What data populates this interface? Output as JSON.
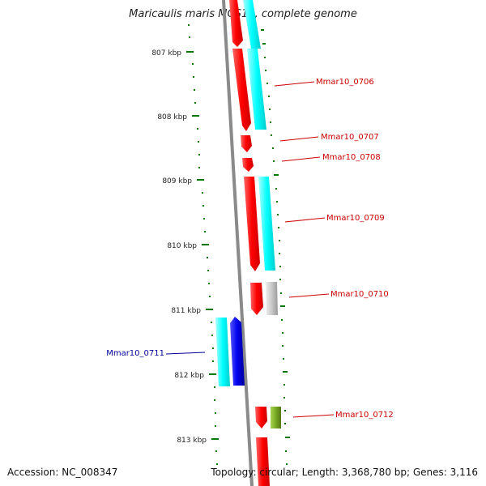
{
  "title": "Maricaulis maris MCS10, complete genome",
  "accession": "Accession: NC_008347",
  "topology": "Topology: circular; Length: 3,368,780 bp; Genes: 3,116",
  "ticks": [
    "807 kbp",
    "808 kbp",
    "809 kbp",
    "810 kbp",
    "811 kbp",
    "812 kbp",
    "813 kbp"
  ],
  "colors": {
    "cds": "#ff0000",
    "gene": "#00ffff",
    "gene_grey": "#c8c8c8",
    "cds_blue": "#0000ee",
    "cds_olive": "#77aa22",
    "ruler": "#007700",
    "label_forward": "#cc0000",
    "label_reverse": "#000099",
    "backbone": "#888888"
  },
  "genes": [
    {
      "id": "Mmar10_0706",
      "label": "Mmar10_0706",
      "strand": "+",
      "gene_color": "cyan"
    },
    {
      "id": "Mmar10_0707",
      "label": "Mmar10_0707",
      "strand": "+",
      "gene_color": "none"
    },
    {
      "id": "Mmar10_0708",
      "label": "Mmar10_0708",
      "strand": "+",
      "gene_color": "none"
    },
    {
      "id": "Mmar10_0709",
      "label": "Mmar10_0709",
      "strand": "+",
      "gene_color": "cyan"
    },
    {
      "id": "Mmar10_0710",
      "label": "Mmar10_0710",
      "strand": "+",
      "gene_color": "grey"
    },
    {
      "id": "Mmar10_0711",
      "label": "Mmar10_0711",
      "strand": "-",
      "gene_color": "cyan"
    },
    {
      "id": "Mmar10_0712",
      "label": "Mmar10_0712",
      "strand": "+",
      "gene_color": "olive"
    }
  ]
}
